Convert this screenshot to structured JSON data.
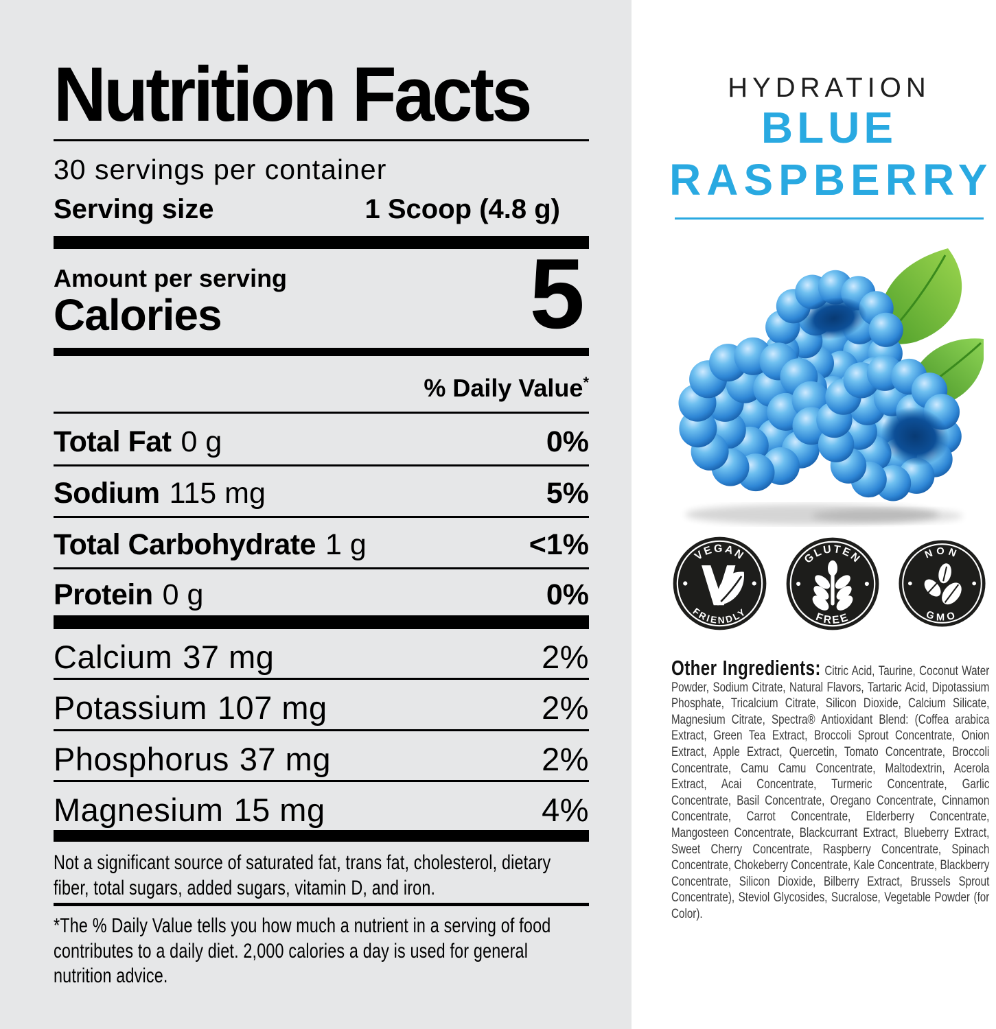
{
  "background": {
    "left_panel_color": "#E6E7E8",
    "right_panel_color": "#FFFFFF"
  },
  "nutrition_label": {
    "title": "Nutrition Facts",
    "servings_per_container": "30 servings per container",
    "serving_size": {
      "label": "Serving size",
      "value": "1 Scoop (4.8 g)"
    },
    "amount_per_serving_label": "Amount per serving",
    "calories": {
      "label": "Calories",
      "value": "5"
    },
    "daily_value_header": "% Daily Value",
    "daily_value_asterisk": "*",
    "macro_rows": [
      {
        "name": "Total Fat",
        "amount": "0 g",
        "dv": "0%"
      },
      {
        "name": "Sodium",
        "amount": "115 mg",
        "dv": "5%"
      },
      {
        "name": "Total Carbohydrate",
        "amount": "1 g",
        "dv": "<1%"
      },
      {
        "name": "Protein",
        "amount": "0 g",
        "dv": "0%"
      }
    ],
    "mineral_rows": [
      {
        "name": "Calcium",
        "amount": "37 mg",
        "dv": "2%"
      },
      {
        "name": "Potassium",
        "amount": "107 mg",
        "dv": "2%"
      },
      {
        "name": "Phosphorus",
        "amount": "37 mg",
        "dv": "2%"
      },
      {
        "name": "Magnesium",
        "amount": "15 mg",
        "dv": "4%"
      }
    ],
    "not_significant_note": "Not a significant source of saturated fat, trans fat, cholesterol, dietary fiber, total sugars, added sugars, vitamin D, and iron.",
    "footnote": "*The % Daily Value tells you how much a nutrient in a serving of food contributes to a daily diet. 2,000 calories a day is used for general nutrition advice."
  },
  "product_panel": {
    "category": "HYDRATION",
    "flavor": {
      "line1": "BLUE",
      "line2": "RASPBERRY"
    },
    "accent_color": "#29A9E1",
    "image_description": "three blue raspberries with green leaves",
    "badges": [
      {
        "top": "VEGAN",
        "bottom": "FRIENDLY",
        "icon": "vegan-leaf-icon"
      },
      {
        "top": "GLUTEN",
        "bottom": "FREE",
        "icon": "wheat-icon"
      },
      {
        "top": "NON",
        "bottom": "GMO",
        "icon": "leaves-icon"
      }
    ],
    "ingredients": {
      "heading": "Other Ingredients:",
      "text": "Citric Acid, Taurine, Coconut Water Powder, Sodium Citrate, Natural Flavors, Tartaric Acid, Dipotassium Phosphate, Tricalcium Citrate, Silicon Dioxide, Calcium Silicate, Magnesium Citrate, Spectra® Antioxidant Blend: (Coffea arabica Extract, Green Tea Extract, Broccoli Sprout Concentrate, Onion Extract, Apple Extract, Quercetin, Tomato Concentrate, Broccoli Concentrate, Camu Camu Concentrate, Maltodextrin, Acerola Extract, Acai Concentrate, Turmeric Concentrate, Garlic Concentrate, Basil Concentrate, Oregano Concentrate, Cinnamon Concentrate, Carrot Concentrate, Elderberry Concentrate, Mangosteen Concentrate, Blackcurrant Extract, Blueberry Extract, Sweet Cherry Concentrate, Raspberry Concentrate, Spinach Concentrate, Chokeberry Concentrate, Kale Concentrate, Blackberry Concentrate, Silicon Dioxide, Bilberry Extract, Brussels Sprout Concentrate), Steviol Glycosides, Sucralose, Vegetable Powder (for Color)."
    }
  }
}
